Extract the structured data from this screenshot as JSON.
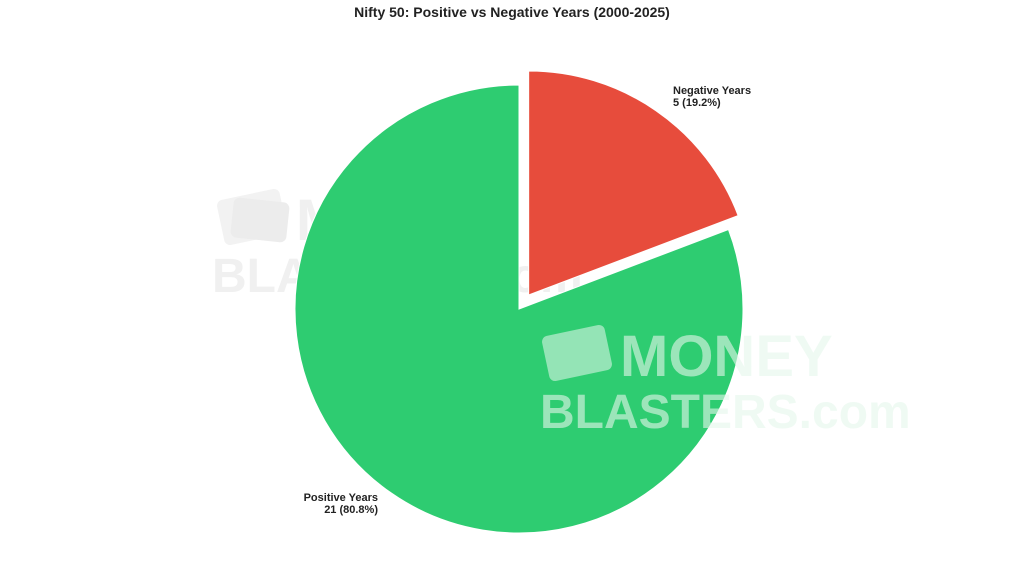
{
  "watermark": {
    "line1": "MONEY",
    "line2": "BLASTERS.com"
  },
  "chart_data": {
    "type": "pie",
    "title": "Nifty 50: Positive vs Negative Years (2000-2025)",
    "categories": [
      "Negative Years",
      "Positive Years"
    ],
    "values": [
      5,
      21
    ],
    "percent_labels": [
      "19.2%",
      "80.8%"
    ],
    "colors": [
      "#e74c3c",
      "#2ecc71"
    ],
    "exploded": "Negative Years",
    "start": "12 o'clock, clockwise",
    "legend": "none"
  }
}
